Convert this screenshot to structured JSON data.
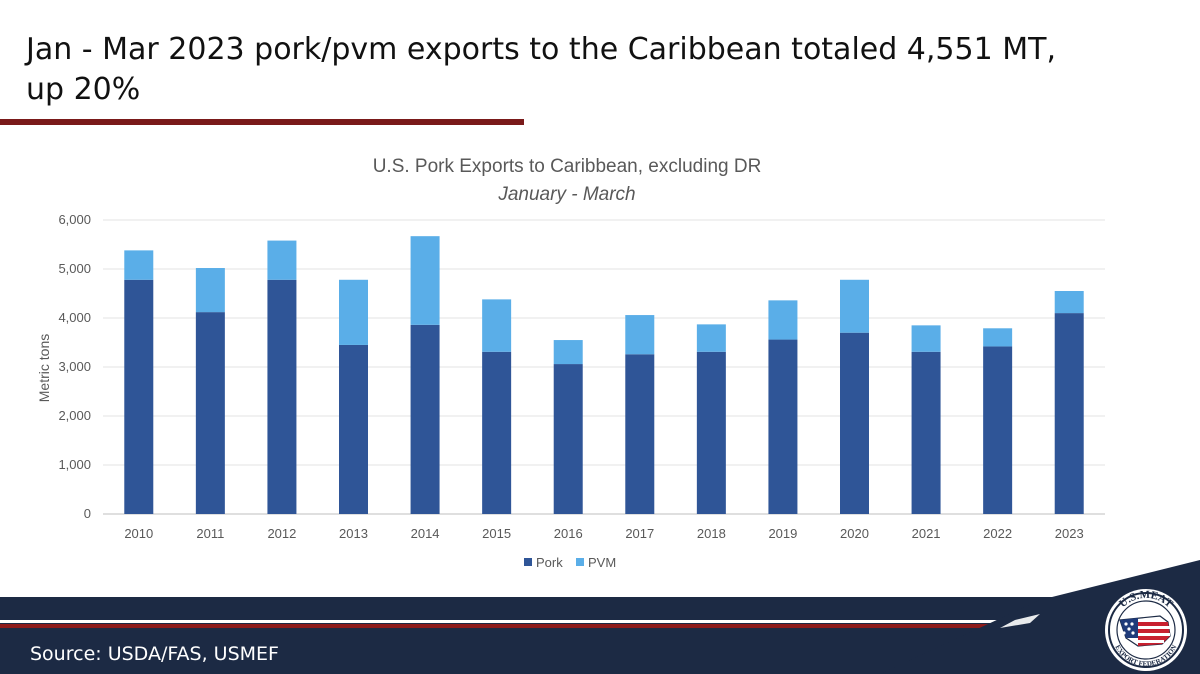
{
  "slide": {
    "title_line1": "Jan - Mar 2023 pork/pvm exports to the Caribbean totaled 4,551 MT,",
    "title_line2": "up 20%",
    "source": "Source: USDA/FAS, USMEF"
  },
  "logo": {
    "text_top": "U.S.MEAT",
    "text_bottom": "EXPORT FEDERATION",
    "icon": "us-meat-export-federation-logo"
  },
  "colors": {
    "pork": "#2f5597",
    "pvm": "#5aaee8",
    "rule": "#7a1a1a",
    "footer": "#1c2a44"
  },
  "chart_data": {
    "type": "bar",
    "stacked": true,
    "title": "U.S. Pork Exports to Caribbean, excluding DR",
    "subtitle": "January - March",
    "xlabel": "",
    "ylabel": "Metric tons",
    "ylim": [
      0,
      6000
    ],
    "yticks": [
      0,
      1000,
      2000,
      3000,
      4000,
      5000,
      6000
    ],
    "ytick_labels": [
      "0",
      "1,000",
      "2,000",
      "3,000",
      "4,000",
      "5,000",
      "6,000"
    ],
    "grid": true,
    "legend_position": "bottom",
    "categories": [
      "2010",
      "2011",
      "2012",
      "2013",
      "2014",
      "2015",
      "2016",
      "2017",
      "2018",
      "2019",
      "2020",
      "2021",
      "2022",
      "2023"
    ],
    "series": [
      {
        "name": "Pork",
        "values": [
          4780,
          4120,
          4780,
          3450,
          3860,
          3310,
          3060,
          3260,
          3310,
          3560,
          3700,
          3310,
          3420,
          4100
        ]
      },
      {
        "name": "PVM",
        "values": [
          600,
          900,
          800,
          1330,
          1810,
          1070,
          490,
          800,
          560,
          800,
          1080,
          540,
          370,
          451
        ]
      }
    ]
  }
}
